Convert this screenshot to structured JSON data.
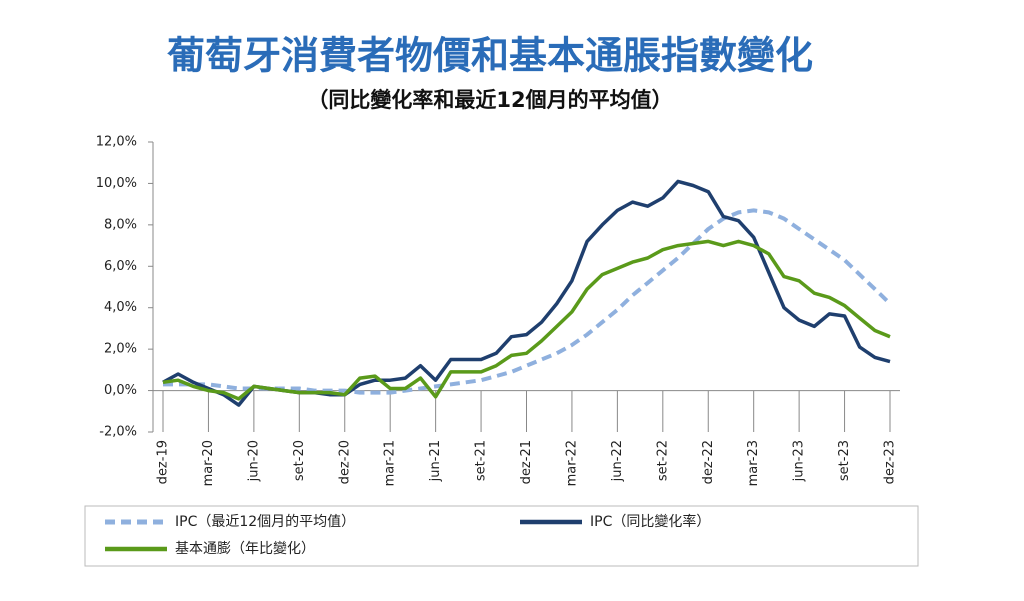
{
  "chart_data": {
    "type": "line",
    "title": "葡萄牙消費者物價和基本通脹指數變化",
    "subtitle": "（同比變化率和最近12個月的平均值）",
    "categories": [
      "dez-19",
      null,
      null,
      "mar-20",
      null,
      null,
      "jun-20",
      null,
      null,
      "set-20",
      null,
      null,
      "dez-20",
      null,
      null,
      "mar-21",
      null,
      null,
      "jun-21",
      null,
      null,
      "set-21",
      null,
      null,
      "dez-21",
      null,
      null,
      "mar-22",
      null,
      null,
      "jun-22",
      null,
      null,
      "set-22",
      null,
      null,
      "dez-22",
      null,
      null,
      "mar-23",
      null,
      null,
      "jun-23",
      null,
      null,
      "set-23",
      null,
      null,
      "dez-23"
    ],
    "series": [
      {
        "name": "IPC（最近12個月的平均值）",
        "color": "#8fb0de",
        "dashed": true,
        "values": [
          0.3,
          0.3,
          0.3,
          0.3,
          0.2,
          0.1,
          0.1,
          0.1,
          0.1,
          0.1,
          0.0,
          0.0,
          0.0,
          -0.1,
          -0.1,
          -0.1,
          0.0,
          0.1,
          0.2,
          0.3,
          0.4,
          0.5,
          0.7,
          0.9,
          1.2,
          1.5,
          1.8,
          2.2,
          2.7,
          3.3,
          3.9,
          4.6,
          5.2,
          5.8,
          6.4,
          7.1,
          7.8,
          8.3,
          8.6,
          8.7,
          8.6,
          8.3,
          7.8,
          7.3,
          6.8,
          6.3,
          5.6,
          4.9,
          4.2
        ]
      },
      {
        "name": "IPC（同比變化率）",
        "color": "#1f3f6e",
        "dashed": false,
        "values": [
          0.4,
          0.8,
          0.4,
          0.1,
          -0.2,
          -0.7,
          0.2,
          0.1,
          0.0,
          -0.1,
          -0.1,
          -0.2,
          -0.2,
          0.3,
          0.5,
          0.5,
          0.6,
          1.2,
          0.5,
          1.5,
          1.5,
          1.5,
          1.8,
          2.6,
          2.7,
          3.3,
          4.2,
          5.3,
          7.2,
          8.0,
          8.7,
          9.1,
          8.9,
          9.3,
          10.1,
          9.9,
          9.6,
          8.4,
          8.2,
          7.4,
          5.7,
          4.0,
          3.4,
          3.1,
          3.7,
          3.6,
          2.1,
          1.6,
          1.4
        ]
      },
      {
        "name": "基本通膨（年比變化）",
        "color": "#5a9a1a",
        "dashed": false,
        "values": [
          0.4,
          0.5,
          0.2,
          0.0,
          -0.1,
          -0.4,
          0.2,
          0.1,
          0.0,
          -0.1,
          -0.1,
          -0.1,
          -0.2,
          0.6,
          0.7,
          0.1,
          0.1,
          0.6,
          -0.3,
          0.9,
          0.9,
          0.9,
          1.2,
          1.7,
          1.8,
          2.4,
          3.1,
          3.8,
          4.9,
          5.6,
          5.9,
          6.2,
          6.4,
          6.8,
          7.0,
          7.1,
          7.2,
          7.0,
          7.2,
          7.0,
          6.6,
          5.5,
          5.3,
          4.7,
          4.5,
          4.1,
          3.5,
          2.9,
          2.6
        ]
      }
    ],
    "ylim": [
      -2,
      12
    ],
    "yticks": [
      {
        "value": -2,
        "label": "-2,0%"
      },
      {
        "value": 0,
        "label": "0,0%"
      },
      {
        "value": 2,
        "label": "2,0%"
      },
      {
        "value": 4,
        "label": "4,0%"
      },
      {
        "value": 6,
        "label": "6,0%"
      },
      {
        "value": 8,
        "label": "8,0%"
      },
      {
        "value": 10,
        "label": "10,0%"
      },
      {
        "value": 12,
        "label": "12,0%"
      }
    ],
    "grid": false
  }
}
